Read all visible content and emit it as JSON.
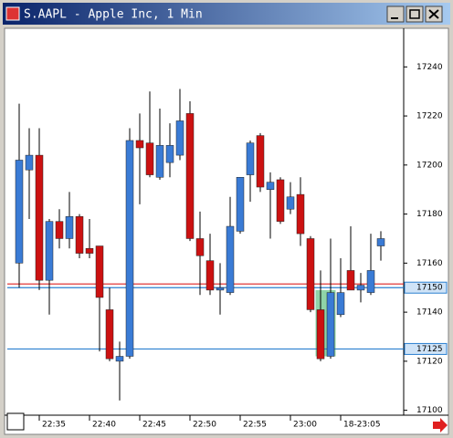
{
  "window": {
    "title": "S.AAPL - Apple Inc, 1 Min"
  },
  "chart_data": {
    "type": "candlestick",
    "categories": [
      null,
      null,
      "22:35",
      null,
      null,
      null,
      null,
      "22:40",
      null,
      null,
      null,
      null,
      "22:45",
      null,
      null,
      null,
      null,
      "22:50",
      null,
      null,
      null,
      null,
      "22:55",
      null,
      null,
      null,
      null,
      "23:00",
      null,
      null,
      null,
      null,
      "18-23:05",
      null,
      null,
      null,
      null
    ],
    "open": [
      17160,
      17198,
      17204,
      17153,
      17177,
      17170,
      17179,
      17166,
      17167,
      17141,
      17120,
      17122,
      17210,
      17209,
      17195,
      17201,
      17204,
      17221,
      17170,
      17161,
      17149,
      17148,
      17173,
      17196,
      17212,
      17190,
      17194,
      17182,
      17188,
      17170,
      17141,
      17122,
      17139,
      17157,
      17149,
      17148,
      17167
    ],
    "high": [
      17225,
      17215,
      17215,
      17178,
      17182,
      17189,
      17180,
      17178,
      17167,
      17150,
      17128,
      17215,
      17221,
      17230,
      17223,
      17217,
      17231,
      17226,
      17181,
      17172,
      17160,
      17187,
      17195,
      17210,
      17213,
      17197,
      17195,
      17193,
      17195,
      17171,
      17157,
      17170,
      17162,
      17175,
      17156,
      17172,
      17173
    ],
    "low": [
      17150,
      17178,
      17149,
      17139,
      17166,
      17166,
      17162,
      17162,
      17124,
      17120,
      17104,
      17121,
      17184,
      17195,
      17194,
      17195,
      17202,
      17169,
      17147,
      17147,
      17139,
      17147,
      17172,
      17185,
      17189,
      17170,
      17176,
      17180,
      17167,
      17140,
      17120,
      17121,
      17138,
      17149,
      17144,
      17147,
      17161
    ],
    "close": [
      17202,
      17204,
      17153,
      17177,
      17170,
      17179,
      17164,
      17164,
      17146,
      17121,
      17122,
      17210,
      17207,
      17196,
      17208,
      17208,
      17218,
      17170,
      17163,
      17149,
      17150,
      17175,
      17195,
      17209,
      17191,
      17193,
      17177,
      17187,
      17172,
      17141,
      17121,
      17148,
      17148,
      17149,
      17151,
      17157,
      17170
    ],
    "up_color": "#3a7bd5",
    "down_color": "#cc1111",
    "ylim": [
      17098,
      17255
    ],
    "yticks": [
      17100,
      17120,
      17140,
      17160,
      17180,
      17200,
      17220,
      17240
    ],
    "lines": [
      {
        "value": 17151.5,
        "color": "#dd2222"
      },
      {
        "value": 17150,
        "label": "17150",
        "color": "#2a7fd0"
      },
      {
        "value": 17125,
        "label": "17125",
        "color": "#2a7fd0"
      }
    ],
    "highlight": {
      "x_range": [
        30,
        31
      ],
      "y_range": [
        17122,
        17149
      ],
      "color": "#8fd4a8"
    }
  }
}
